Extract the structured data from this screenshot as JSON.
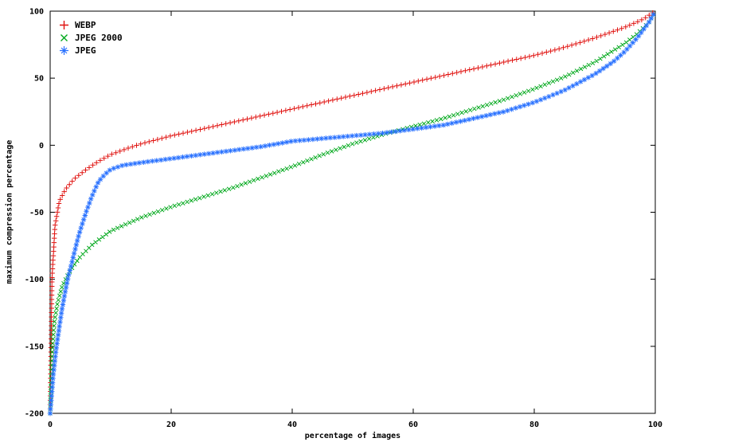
{
  "chart_data": {
    "type": "scatter",
    "title": "",
    "xlabel": "percentage of images",
    "ylabel": "maximum compression percentage",
    "xlim": [
      0,
      100
    ],
    "ylim": [
      -200,
      100
    ],
    "x_ticks": [
      0,
      20,
      40,
      60,
      80,
      100
    ],
    "y_ticks": [
      100,
      50,
      0,
      -50,
      -100,
      -150,
      -200
    ],
    "grid": false,
    "legend_position": "top-left",
    "background": "#ffffff",
    "axis_color": "#000000",
    "series": [
      {
        "name": "WEBP",
        "marker": "plus",
        "color": "#e01310",
        "points": [
          [
            0,
            -200
          ],
          [
            0.3,
            -100
          ],
          [
            0.8,
            -60
          ],
          [
            1.5,
            -42
          ],
          [
            2.5,
            -33
          ],
          [
            4,
            -25
          ],
          [
            6,
            -18
          ],
          [
            8,
            -12
          ],
          [
            10,
            -7
          ],
          [
            13,
            -2
          ],
          [
            15,
            1
          ],
          [
            20,
            7
          ],
          [
            25,
            12
          ],
          [
            30,
            17
          ],
          [
            35,
            22
          ],
          [
            40,
            27
          ],
          [
            45,
            32
          ],
          [
            50,
            37
          ],
          [
            55,
            42
          ],
          [
            60,
            47
          ],
          [
            65,
            52
          ],
          [
            70,
            57
          ],
          [
            75,
            62
          ],
          [
            80,
            67
          ],
          [
            85,
            73
          ],
          [
            90,
            80
          ],
          [
            95,
            88
          ],
          [
            98,
            94
          ],
          [
            100,
            100
          ]
        ]
      },
      {
        "name": "JPEG 2000",
        "marker": "cross",
        "color": "#00a81b",
        "points": [
          [
            0,
            -200
          ],
          [
            0.3,
            -155
          ],
          [
            0.7,
            -132
          ],
          [
            1.2,
            -118
          ],
          [
            2,
            -105
          ],
          [
            3,
            -96
          ],
          [
            4,
            -89
          ],
          [
            5,
            -83
          ],
          [
            7,
            -74
          ],
          [
            10,
            -64
          ],
          [
            15,
            -54
          ],
          [
            20,
            -46
          ],
          [
            25,
            -39
          ],
          [
            30,
            -32
          ],
          [
            35,
            -24
          ],
          [
            40,
            -16
          ],
          [
            45,
            -7
          ],
          [
            50,
            1
          ],
          [
            55,
            8
          ],
          [
            60,
            14
          ],
          [
            65,
            20
          ],
          [
            70,
            27
          ],
          [
            75,
            34
          ],
          [
            80,
            42
          ],
          [
            85,
            51
          ],
          [
            90,
            62
          ],
          [
            95,
            76
          ],
          [
            97,
            83
          ],
          [
            99,
            92
          ],
          [
            100,
            100
          ]
        ]
      },
      {
        "name": "JPEG",
        "marker": "asterisk",
        "color": "#2a72ff",
        "points": [
          [
            0,
            -200
          ],
          [
            0.5,
            -172
          ],
          [
            1,
            -152
          ],
          [
            1.5,
            -136
          ],
          [
            2,
            -121
          ],
          [
            2.5,
            -109
          ],
          [
            3,
            -98
          ],
          [
            3.5,
            -89
          ],
          [
            4,
            -80
          ],
          [
            4.5,
            -71
          ],
          [
            5,
            -63
          ],
          [
            5.5,
            -56
          ],
          [
            6,
            -49
          ],
          [
            6.5,
            -43
          ],
          [
            7,
            -37
          ],
          [
            7.5,
            -32
          ],
          [
            8,
            -27
          ],
          [
            9,
            -22
          ],
          [
            10,
            -18
          ],
          [
            12,
            -15
          ],
          [
            15,
            -13
          ],
          [
            20,
            -10
          ],
          [
            25,
            -7
          ],
          [
            30,
            -4
          ],
          [
            35,
            -1
          ],
          [
            40,
            3
          ],
          [
            45,
            5
          ],
          [
            50,
            7
          ],
          [
            55,
            9
          ],
          [
            60,
            12
          ],
          [
            65,
            15
          ],
          [
            70,
            20
          ],
          [
            75,
            25
          ],
          [
            80,
            32
          ],
          [
            85,
            41
          ],
          [
            90,
            53
          ],
          [
            93,
            62
          ],
          [
            95,
            70
          ],
          [
            97,
            80
          ],
          [
            98,
            86
          ],
          [
            99,
            92
          ],
          [
            100,
            100
          ]
        ]
      }
    ]
  }
}
